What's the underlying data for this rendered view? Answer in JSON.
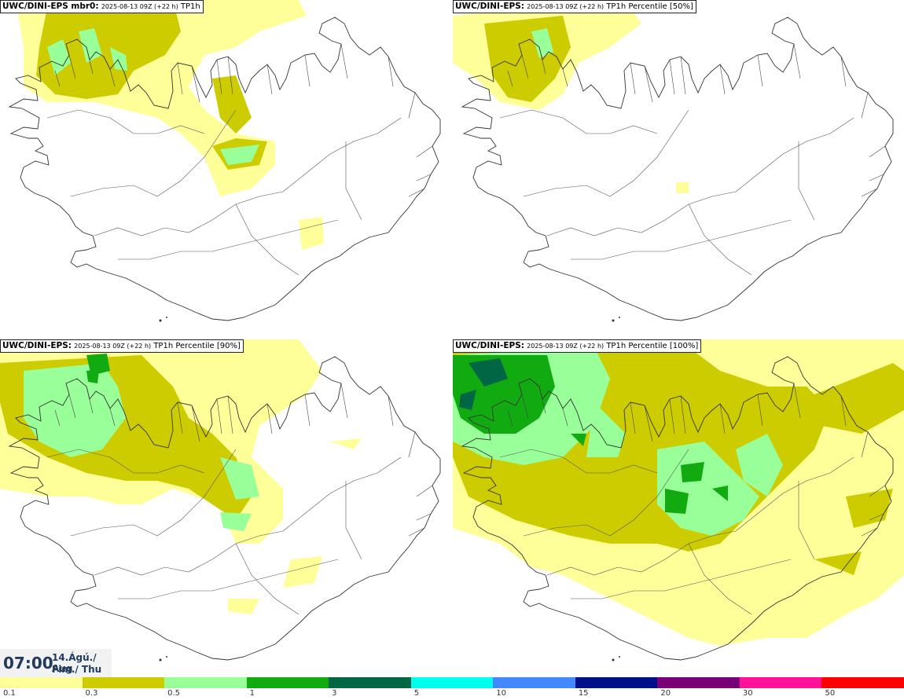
{
  "panels": [
    {
      "model": "UWC/DINI-EPS",
      "member": " mbr0:",
      "run": "2025-08-13 09Z (+22 h)",
      "field": "TP1h"
    },
    {
      "model": "UWC/DINI-EPS",
      "member": ":",
      "run": "2025-08-13 09Z (+22 h)",
      "field": "TP1h Percentile [50%]"
    },
    {
      "model": "UWC/DINI-EPS",
      "member": ":",
      "run": "2025-08-13 09Z (+22 h)",
      "field": "TP1h Percentile [90%]"
    },
    {
      "model": "UWC/DINI-EPS",
      "member": ":",
      "run": "2025-08-13 09Z (+22 h)",
      "field": "TP1h Percentile [100%]"
    }
  ],
  "valid_time": {
    "time": "07:00",
    "date_line": "14.Ágú./ Aug",
    "day_line": "Fim./ Thu"
  },
  "legend": {
    "labels": [
      "0.1",
      "0.3",
      "0.5",
      "1",
      "3",
      "5",
      "10",
      "15",
      "20",
      "30",
      "50"
    ],
    "colors": [
      "#ffff99",
      "#cccc00",
      "#99ff99",
      "#11aa11",
      "#006644",
      "#00ffee",
      "#4488ff",
      "#001188",
      "#770077",
      "#ff1199",
      "#ff0000"
    ]
  }
}
